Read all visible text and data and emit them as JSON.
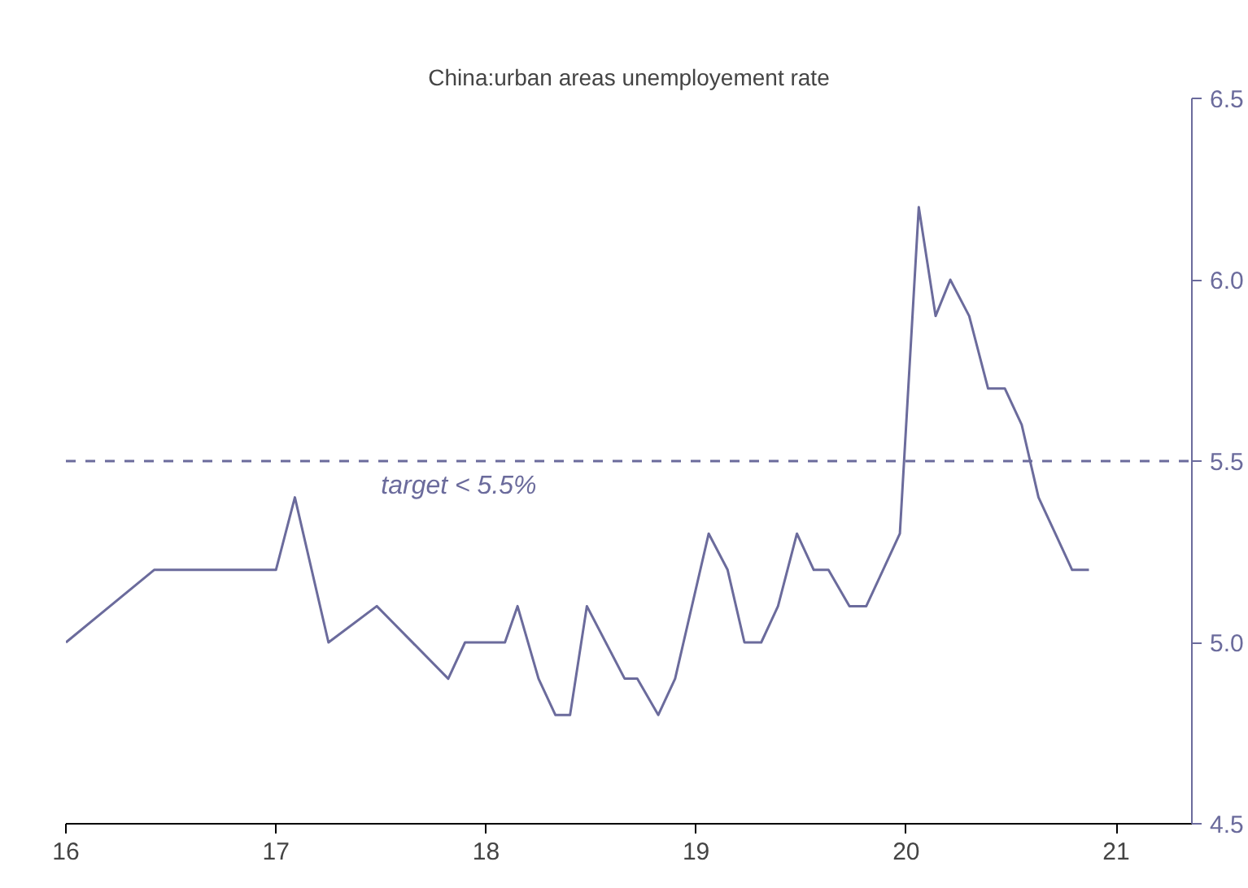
{
  "chart_data": {
    "type": "line",
    "title": "China:urban areas unemployement rate",
    "x": [
      16.0,
      16.42,
      17.0,
      17.09,
      17.25,
      17.48,
      17.82,
      17.9,
      18.09,
      18.15,
      18.25,
      18.33,
      18.4,
      18.48,
      18.66,
      18.72,
      18.82,
      18.9,
      19.06,
      19.15,
      19.23,
      19.31,
      19.39,
      19.48,
      19.56,
      19.63,
      19.73,
      19.81,
      19.89,
      19.97,
      20.06,
      20.14,
      20.21,
      20.3,
      20.39,
      20.47,
      20.55,
      20.63,
      20.71,
      20.79,
      20.87
    ],
    "series": [
      {
        "color": "#6b6b9c",
        "values": [
          5.0,
          5.2,
          5.2,
          5.4,
          5.0,
          5.1,
          4.9,
          5.0,
          5.0,
          5.1,
          4.9,
          4.8,
          4.8,
          5.1,
          4.9,
          4.9,
          4.8,
          4.9,
          5.3,
          5.2,
          5.0,
          5.0,
          5.1,
          5.3,
          5.2,
          5.2,
          5.1,
          5.1,
          5.2,
          5.3,
          6.2,
          5.9,
          6.0,
          5.9,
          5.7,
          5.7,
          5.6,
          5.4,
          5.3,
          5.2,
          5.2
        ]
      }
    ],
    "xlim": [
      16,
      21.36
    ],
    "xticks": [
      16,
      17,
      18,
      19,
      20,
      21
    ],
    "ylim": [
      4.5,
      6.5
    ],
    "yticks": [
      4.5,
      {
        "value": 5,
        "label": "5.0"
      },
      5.5,
      {
        "value": 6,
        "label": "6.0"
      },
      6.5
    ],
    "ref_lines": [
      {
        "axis": "y",
        "value": 5.5,
        "label": "target < 5.5%",
        "color": "#6b6b9c",
        "line_style": "dashed"
      }
    ],
    "grid": false,
    "marker": "none",
    "line_style": "solid"
  }
}
